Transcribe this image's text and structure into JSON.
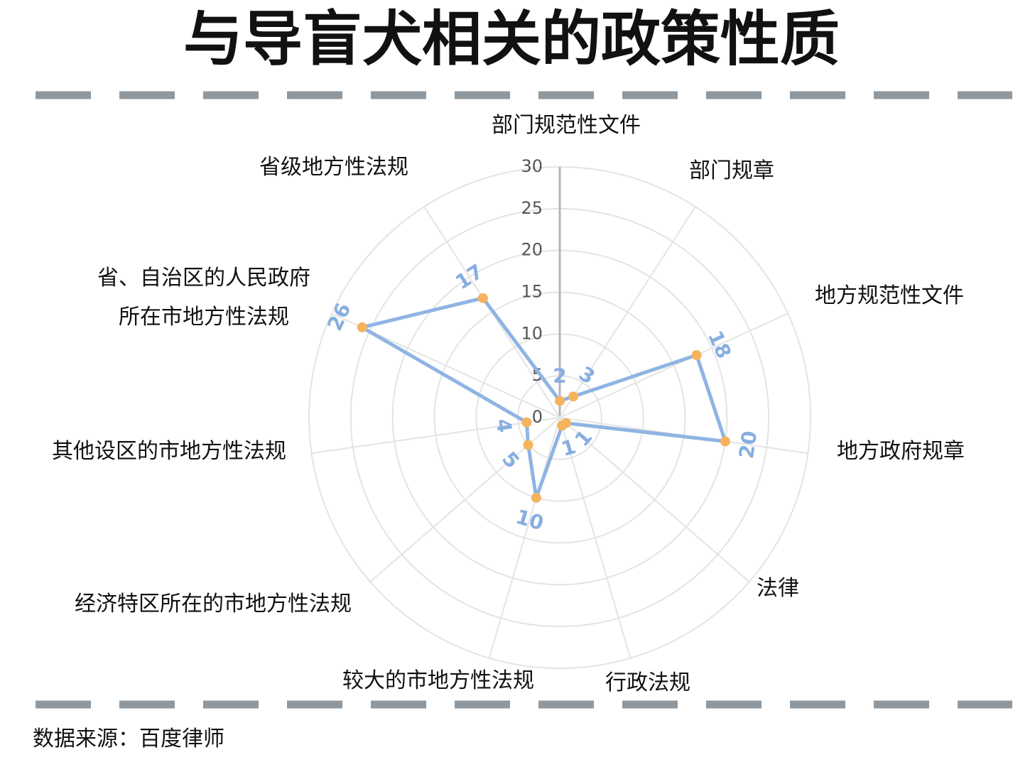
{
  "chart_data": {
    "type": "radar",
    "title": "与导盲犬相关的政策性质",
    "source": "数据来源：百度律师",
    "categories": [
      "部门规范性文件",
      "部门规章",
      "地方规范性文件",
      "地方政府规章",
      "法律",
      "行政法规",
      "较大的市地方性法规",
      "经济特区所在的市地方性法规",
      "其他设区的市地方性法规",
      "省、自治区的人民政府\n所在市地方性法规",
      "省级地方性法规"
    ],
    "values": [
      2,
      3,
      18,
      20,
      1,
      1,
      10,
      5,
      4,
      26,
      17
    ],
    "color": "#8fb4e3",
    "marker_color": "#f5b35e",
    "label_color": "#86aee0",
    "ylim": [
      0,
      30
    ],
    "yticks": [
      0,
      5,
      10,
      15,
      20,
      25,
      30
    ],
    "grid": true
  }
}
